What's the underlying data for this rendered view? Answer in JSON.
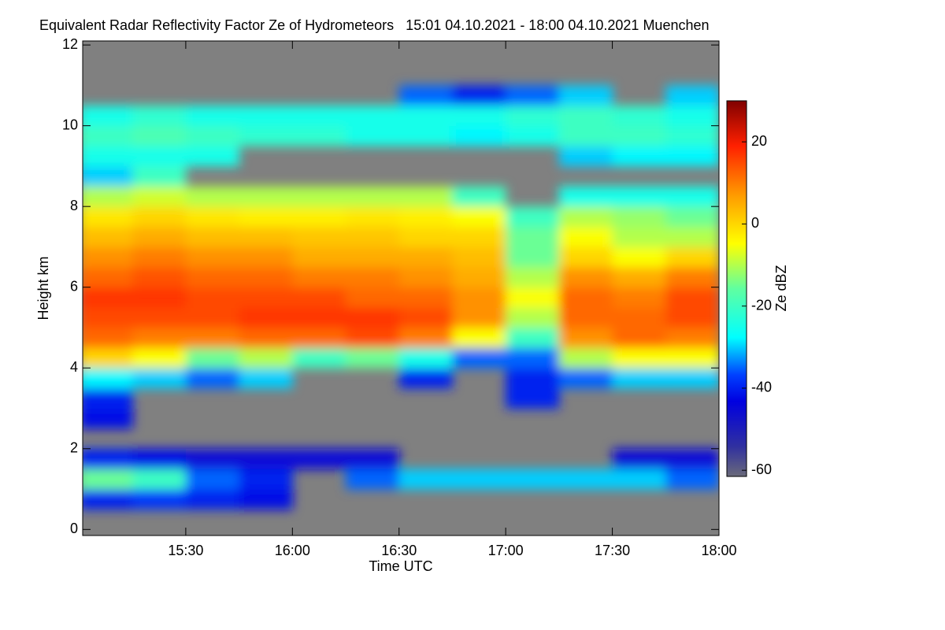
{
  "chart_data": {
    "type": "heatmap",
    "title": "Equivalent Radar Reflectivity Factor Ze of Hydrometeors   15:01 04.10.2021 - 18:00 04.10.2021 Muenchen",
    "x_label": "Time UTC",
    "y_label": "Height km",
    "colorbar_label": "Ze dBZ",
    "xlim": [
      15.0167,
      18.0
    ],
    "xticks": [
      {
        "value": 15.5,
        "label": "15:30"
      },
      {
        "value": 16.0,
        "label": "16:00"
      },
      {
        "value": 16.5,
        "label": "16:30"
      },
      {
        "value": 17.0,
        "label": "17:00"
      },
      {
        "value": 17.5,
        "label": "17:30"
      },
      {
        "value": 18.0,
        "label": "18:00"
      }
    ],
    "ylim": [
      -0.15,
      12.1
    ],
    "yticks": [
      0,
      2,
      4,
      6,
      8,
      10,
      12
    ],
    "zlim": [
      -61.5,
      30
    ],
    "zticks": [
      -60,
      -40,
      -20,
      0,
      20
    ],
    "background": "#808080",
    "x": [
      15.125,
      15.375,
      15.625,
      15.875,
      16.125,
      16.375,
      16.625,
      16.875,
      17.125,
      17.375,
      17.625,
      17.875
    ],
    "y": [
      0.25,
      0.75,
      1.25,
      1.75,
      2.25,
      2.75,
      3.25,
      3.75,
      4.25,
      4.75,
      5.25,
      5.75,
      6.25,
      6.75,
      7.25,
      7.75,
      8.25,
      8.75,
      9.25,
      9.75,
      10.25,
      10.75,
      11.25,
      11.75
    ],
    "values": [
      [
        null,
        null,
        null,
        null,
        null,
        null,
        null,
        null,
        null,
        null,
        null,
        null
      ],
      [
        -40,
        -38,
        -40,
        -42,
        null,
        null,
        null,
        null,
        null,
        null,
        null,
        null
      ],
      [
        -15,
        -20,
        -35,
        -40,
        null,
        -35,
        -30,
        -30,
        -30,
        -30,
        -30,
        -35
      ],
      [
        -40,
        -42,
        -45,
        -45,
        -45,
        -45,
        null,
        null,
        null,
        null,
        -45,
        -45
      ],
      [
        null,
        null,
        null,
        null,
        null,
        null,
        null,
        null,
        null,
        null,
        null,
        null
      ],
      [
        -42,
        null,
        null,
        null,
        null,
        null,
        null,
        null,
        null,
        null,
        null,
        null
      ],
      [
        -40,
        null,
        null,
        null,
        null,
        null,
        null,
        null,
        -40,
        null,
        null,
        null
      ],
      [
        -28,
        -30,
        -35,
        -30,
        null,
        null,
        -40,
        null,
        -40,
        -35,
        -30,
        -30
      ],
      [
        0,
        -5,
        -15,
        -10,
        -20,
        -15,
        -25,
        -35,
        -35,
        -10,
        -5,
        -5
      ],
      [
        12,
        10,
        10,
        12,
        12,
        15,
        10,
        -5,
        -20,
        8,
        12,
        10
      ],
      [
        15,
        15,
        15,
        17,
        17,
        17,
        15,
        8,
        -10,
        12,
        12,
        15
      ],
      [
        17,
        17,
        15,
        15,
        15,
        12,
        12,
        8,
        -5,
        12,
        10,
        15
      ],
      [
        12,
        14,
        12,
        12,
        10,
        10,
        8,
        5,
        -10,
        8,
        5,
        10
      ],
      [
        8,
        10,
        8,
        8,
        5,
        5,
        5,
        3,
        -15,
        0,
        -5,
        0
      ],
      [
        3,
        5,
        3,
        3,
        2,
        2,
        0,
        0,
        -15,
        -5,
        -10,
        -10
      ],
      [
        -2,
        0,
        -2,
        -3,
        -3,
        -2,
        -3,
        -5,
        -20,
        -10,
        -12,
        -15
      ],
      [
        -10,
        -8,
        -10,
        -10,
        -10,
        -10,
        -10,
        -20,
        null,
        -25,
        -25,
        -25
      ],
      [
        -30,
        -20,
        null,
        null,
        null,
        null,
        null,
        null,
        null,
        null,
        null,
        null
      ],
      [
        -25,
        -25,
        -25,
        null,
        null,
        null,
        null,
        null,
        null,
        -30,
        -28,
        -28
      ],
      [
        -20,
        -18,
        -20,
        -22,
        -22,
        -25,
        -25,
        -28,
        -25,
        -20,
        -20,
        -22
      ],
      [
        -25,
        -22,
        -25,
        -25,
        -25,
        -25,
        -25,
        -25,
        -22,
        -20,
        -22,
        -25
      ],
      [
        null,
        null,
        null,
        null,
        null,
        null,
        -35,
        -40,
        -35,
        -30,
        null,
        -30
      ],
      [
        null,
        null,
        null,
        null,
        null,
        null,
        null,
        null,
        null,
        null,
        null,
        null
      ],
      [
        null,
        null,
        null,
        null,
        null,
        null,
        null,
        null,
        null,
        null,
        null,
        null
      ]
    ]
  }
}
